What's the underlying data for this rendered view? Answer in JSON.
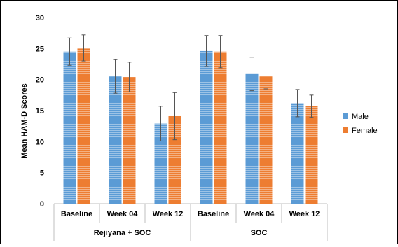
{
  "chart_data": {
    "type": "bar",
    "title": "",
    "ylabel": "Mean HAM-D Scores",
    "xlabel": "",
    "ylim": [
      0,
      30
    ],
    "yticks": [
      0,
      5,
      10,
      15,
      20,
      25,
      30
    ],
    "grid": false,
    "legend_position": "right",
    "categories": [
      "Baseline",
      "Week 04",
      "Week 12",
      "Baseline",
      "Week 04",
      "Week 12"
    ],
    "groups": [
      {
        "label": "Rejiyana + SOC",
        "span": [
          0,
          2
        ]
      },
      {
        "label": "SOC",
        "span": [
          3,
          5
        ]
      }
    ],
    "series": [
      {
        "name": "Male",
        "color": "#5B9BD5",
        "values": [
          24.5,
          20.5,
          12.9,
          24.6,
          20.9,
          16.2
        ],
        "error": [
          2.2,
          2.7,
          2.8,
          2.5,
          2.7,
          2.2
        ]
      },
      {
        "name": "Female",
        "color": "#ED7D31",
        "values": [
          25.1,
          20.4,
          14.1,
          24.5,
          20.5,
          15.7
        ],
        "error": [
          2.1,
          2.4,
          3.8,
          2.6,
          2.0,
          1.8
        ]
      }
    ]
  }
}
